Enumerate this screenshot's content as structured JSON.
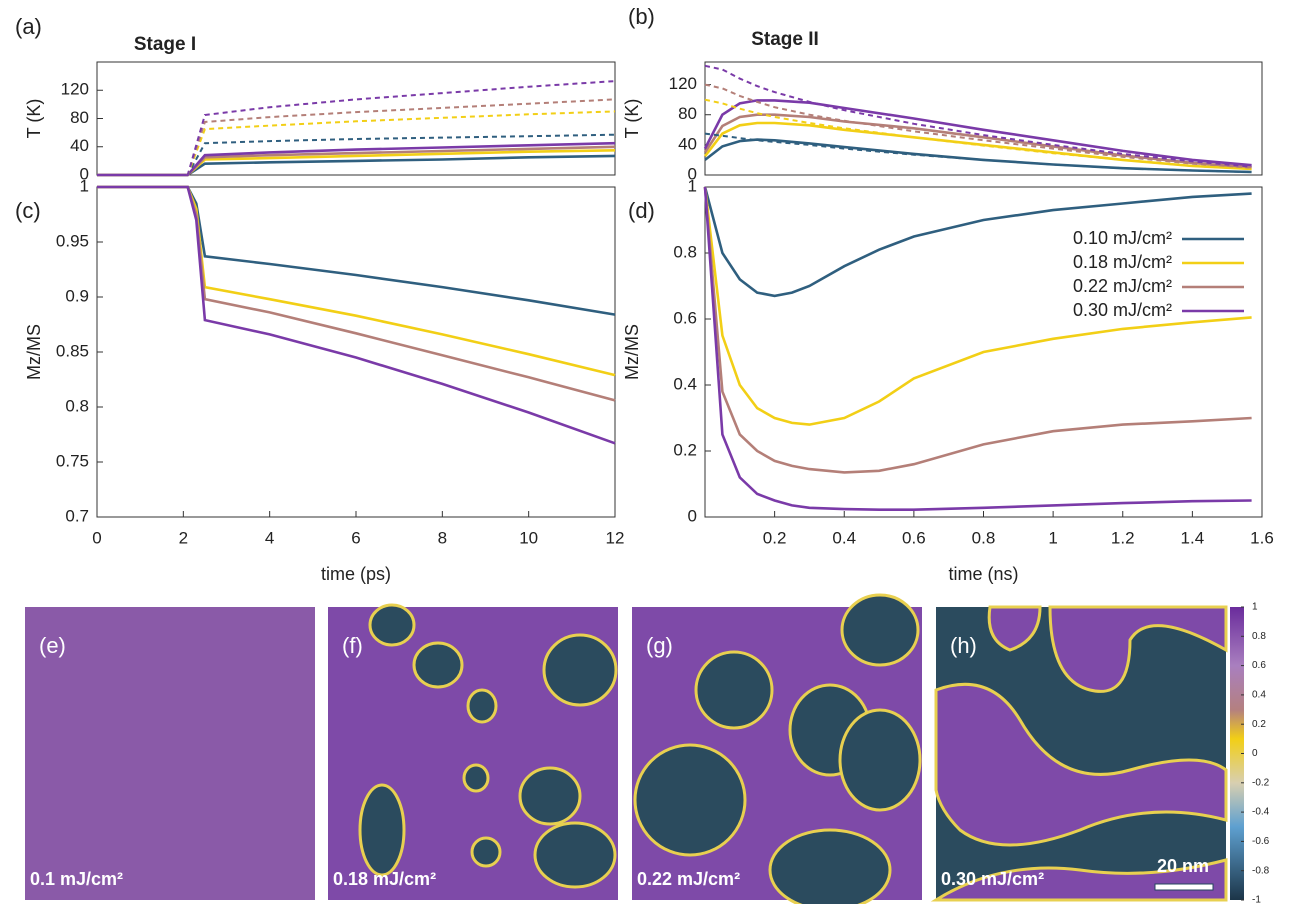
{
  "chart_data": [
    {
      "type": "line",
      "panel_label": "(a)",
      "title": "Stage I",
      "ylabel": "T (K)",
      "xlim": [
        0,
        12
      ],
      "ylim": [
        0,
        160
      ],
      "yticks": [
        0,
        40,
        80,
        120
      ],
      "x": [
        0,
        2.1,
        2.5,
        4,
        6,
        8,
        10,
        12
      ],
      "series": [
        {
          "color": "#2f5f7f",
          "dashed": false,
          "values": [
            0,
            0,
            16,
            18,
            20,
            22,
            25,
            27
          ]
        },
        {
          "color": "#f2cf16",
          "dashed": false,
          "values": [
            0,
            0,
            22,
            24,
            27,
            30,
            33,
            35
          ]
        },
        {
          "color": "#b47f78",
          "dashed": false,
          "values": [
            0,
            0,
            25,
            28,
            31,
            34,
            37,
            40
          ]
        },
        {
          "color": "#7a3aa8",
          "dashed": false,
          "values": [
            0,
            0,
            28,
            32,
            36,
            39,
            42,
            45
          ]
        },
        {
          "color": "#2f5f7f",
          "dashed": true,
          "values": [
            0,
            0,
            45,
            48,
            51,
            53,
            55,
            57
          ]
        },
        {
          "color": "#f2cf16",
          "dashed": true,
          "values": [
            0,
            0,
            65,
            70,
            76,
            81,
            86,
            90
          ]
        },
        {
          "color": "#b47f78",
          "dashed": true,
          "values": [
            0,
            0,
            75,
            82,
            89,
            95,
            101,
            107
          ]
        },
        {
          "color": "#7a3aa8",
          "dashed": true,
          "values": [
            0,
            0,
            85,
            96,
            107,
            116,
            125,
            133
          ]
        }
      ]
    },
    {
      "type": "line",
      "panel_label": "(b)",
      "title": "Stage II",
      "ylabel": "T (K)",
      "xlim": [
        0,
        1.6
      ],
      "ylim": [
        0,
        150
      ],
      "yticks": [
        0,
        40,
        80,
        120
      ],
      "x": [
        0,
        0.05,
        0.1,
        0.15,
        0.2,
        0.3,
        0.4,
        0.6,
        0.8,
        1.0,
        1.2,
        1.4,
        1.57
      ],
      "series": [
        {
          "color": "#2f5f7f",
          "dashed": false,
          "values": [
            20,
            38,
            45,
            47,
            46,
            42,
            37,
            28,
            20,
            14,
            9,
            6,
            4
          ]
        },
        {
          "color": "#f2cf16",
          "dashed": false,
          "values": [
            25,
            55,
            66,
            69,
            69,
            66,
            60,
            50,
            40,
            30,
            20,
            12,
            8
          ]
        },
        {
          "color": "#b47f78",
          "dashed": false,
          "values": [
            30,
            65,
            77,
            80,
            80,
            77,
            71,
            62,
            50,
            38,
            26,
            16,
            10
          ]
        },
        {
          "color": "#7a3aa8",
          "dashed": false,
          "values": [
            35,
            80,
            95,
            99,
            99,
            96,
            89,
            75,
            60,
            46,
            32,
            20,
            13
          ]
        },
        {
          "color": "#2f5f7f",
          "dashed": true,
          "values": [
            55,
            52,
            49,
            46,
            44,
            40,
            35,
            27,
            20,
            14,
            9,
            6,
            4
          ]
        },
        {
          "color": "#f2cf16",
          "dashed": true,
          "values": [
            100,
            95,
            88,
            82,
            77,
            69,
            62,
            50,
            39,
            29,
            20,
            12,
            8
          ]
        },
        {
          "color": "#b47f78",
          "dashed": true,
          "values": [
            120,
            115,
            105,
            97,
            90,
            80,
            72,
            58,
            46,
            35,
            24,
            15,
            10
          ]
        },
        {
          "color": "#7a3aa8",
          "dashed": true,
          "values": [
            145,
            140,
            128,
            118,
            110,
            97,
            86,
            68,
            53,
            40,
            28,
            18,
            11
          ]
        }
      ]
    },
    {
      "type": "line",
      "panel_label": "(c)",
      "ylabel": "Mz/MS",
      "xlabel": "time (ps)",
      "xlim": [
        0,
        12
      ],
      "ylim": [
        0.7,
        1
      ],
      "xticks": [
        0,
        2,
        4,
        6,
        8,
        10,
        12
      ],
      "yticks": [
        0.7,
        0.75,
        0.8,
        0.85,
        0.9,
        0.95,
        1
      ],
      "x": [
        0,
        2.1,
        2.3,
        2.5,
        4,
        6,
        8,
        10,
        12
      ],
      "series": [
        {
          "color": "#2f5f7f",
          "dashed": false,
          "values": [
            1,
            1,
            0.985,
            0.937,
            0.93,
            0.92,
            0.909,
            0.897,
            0.884
          ]
        },
        {
          "color": "#f2cf16",
          "dashed": false,
          "values": [
            1,
            1,
            0.98,
            0.909,
            0.898,
            0.883,
            0.866,
            0.848,
            0.829
          ]
        },
        {
          "color": "#b47f78",
          "dashed": false,
          "values": [
            1,
            1,
            0.975,
            0.898,
            0.886,
            0.867,
            0.847,
            0.827,
            0.806
          ]
        },
        {
          "color": "#7a3aa8",
          "dashed": false,
          "values": [
            1,
            1,
            0.97,
            0.879,
            0.866,
            0.845,
            0.821,
            0.795,
            0.767
          ]
        }
      ]
    },
    {
      "type": "line",
      "panel_label": "(d)",
      "ylabel": "Mz/MS",
      "xlabel": "time (ns)",
      "legend": "top-right",
      "xlim": [
        0,
        1.6
      ],
      "ylim": [
        0,
        1
      ],
      "xticks": [
        0.2,
        0.4,
        0.6,
        0.8,
        1,
        1.2,
        1.4,
        1.6
      ],
      "yticks": [
        0,
        0.2,
        0.4,
        0.6,
        0.8,
        1
      ],
      "x": [
        0,
        0.05,
        0.1,
        0.15,
        0.2,
        0.25,
        0.3,
        0.4,
        0.5,
        0.6,
        0.8,
        1.0,
        1.2,
        1.4,
        1.57
      ],
      "series": [
        {
          "name": "0.10 mJ/cm²",
          "color": "#2f5f7f",
          "dashed": false,
          "values": [
            1,
            0.8,
            0.72,
            0.68,
            0.67,
            0.68,
            0.7,
            0.76,
            0.81,
            0.85,
            0.9,
            0.93,
            0.95,
            0.97,
            0.98
          ]
        },
        {
          "name": "0.18 mJ/cm²",
          "color": "#f2cf16",
          "dashed": false,
          "values": [
            1,
            0.55,
            0.4,
            0.33,
            0.3,
            0.285,
            0.28,
            0.3,
            0.35,
            0.42,
            0.5,
            0.54,
            0.57,
            0.59,
            0.605
          ]
        },
        {
          "name": "0.22 mJ/cm²",
          "color": "#b47f78",
          "dashed": false,
          "values": [
            1,
            0.38,
            0.25,
            0.2,
            0.17,
            0.155,
            0.145,
            0.135,
            0.14,
            0.16,
            0.22,
            0.26,
            0.28,
            0.29,
            0.3
          ]
        },
        {
          "name": "0.30 mJ/cm²",
          "color": "#7a3aa8",
          "dashed": false,
          "values": [
            1,
            0.25,
            0.12,
            0.07,
            0.05,
            0.035,
            0.028,
            0.024,
            0.022,
            0.022,
            0.028,
            0.035,
            0.042,
            0.048,
            0.05
          ]
        }
      ]
    },
    {
      "type": "colorbar",
      "ylim": [
        -1,
        1
      ],
      "yticks": [
        1,
        0.8,
        0.6,
        0.4,
        0.2,
        0,
        -0.2,
        -0.4,
        -0.6,
        -0.8,
        -1
      ]
    }
  ],
  "panels": [
    {
      "label": "(e)",
      "fluence": "0.1 mJ/cm²"
    },
    {
      "label": "(f)",
      "fluence": "0.18 mJ/cm²"
    },
    {
      "label": "(g)",
      "fluence": "0.22 mJ/cm²"
    },
    {
      "label": "(h)",
      "fluence": "0.30 mJ/cm²"
    }
  ],
  "scale_bar": "20 nm"
}
